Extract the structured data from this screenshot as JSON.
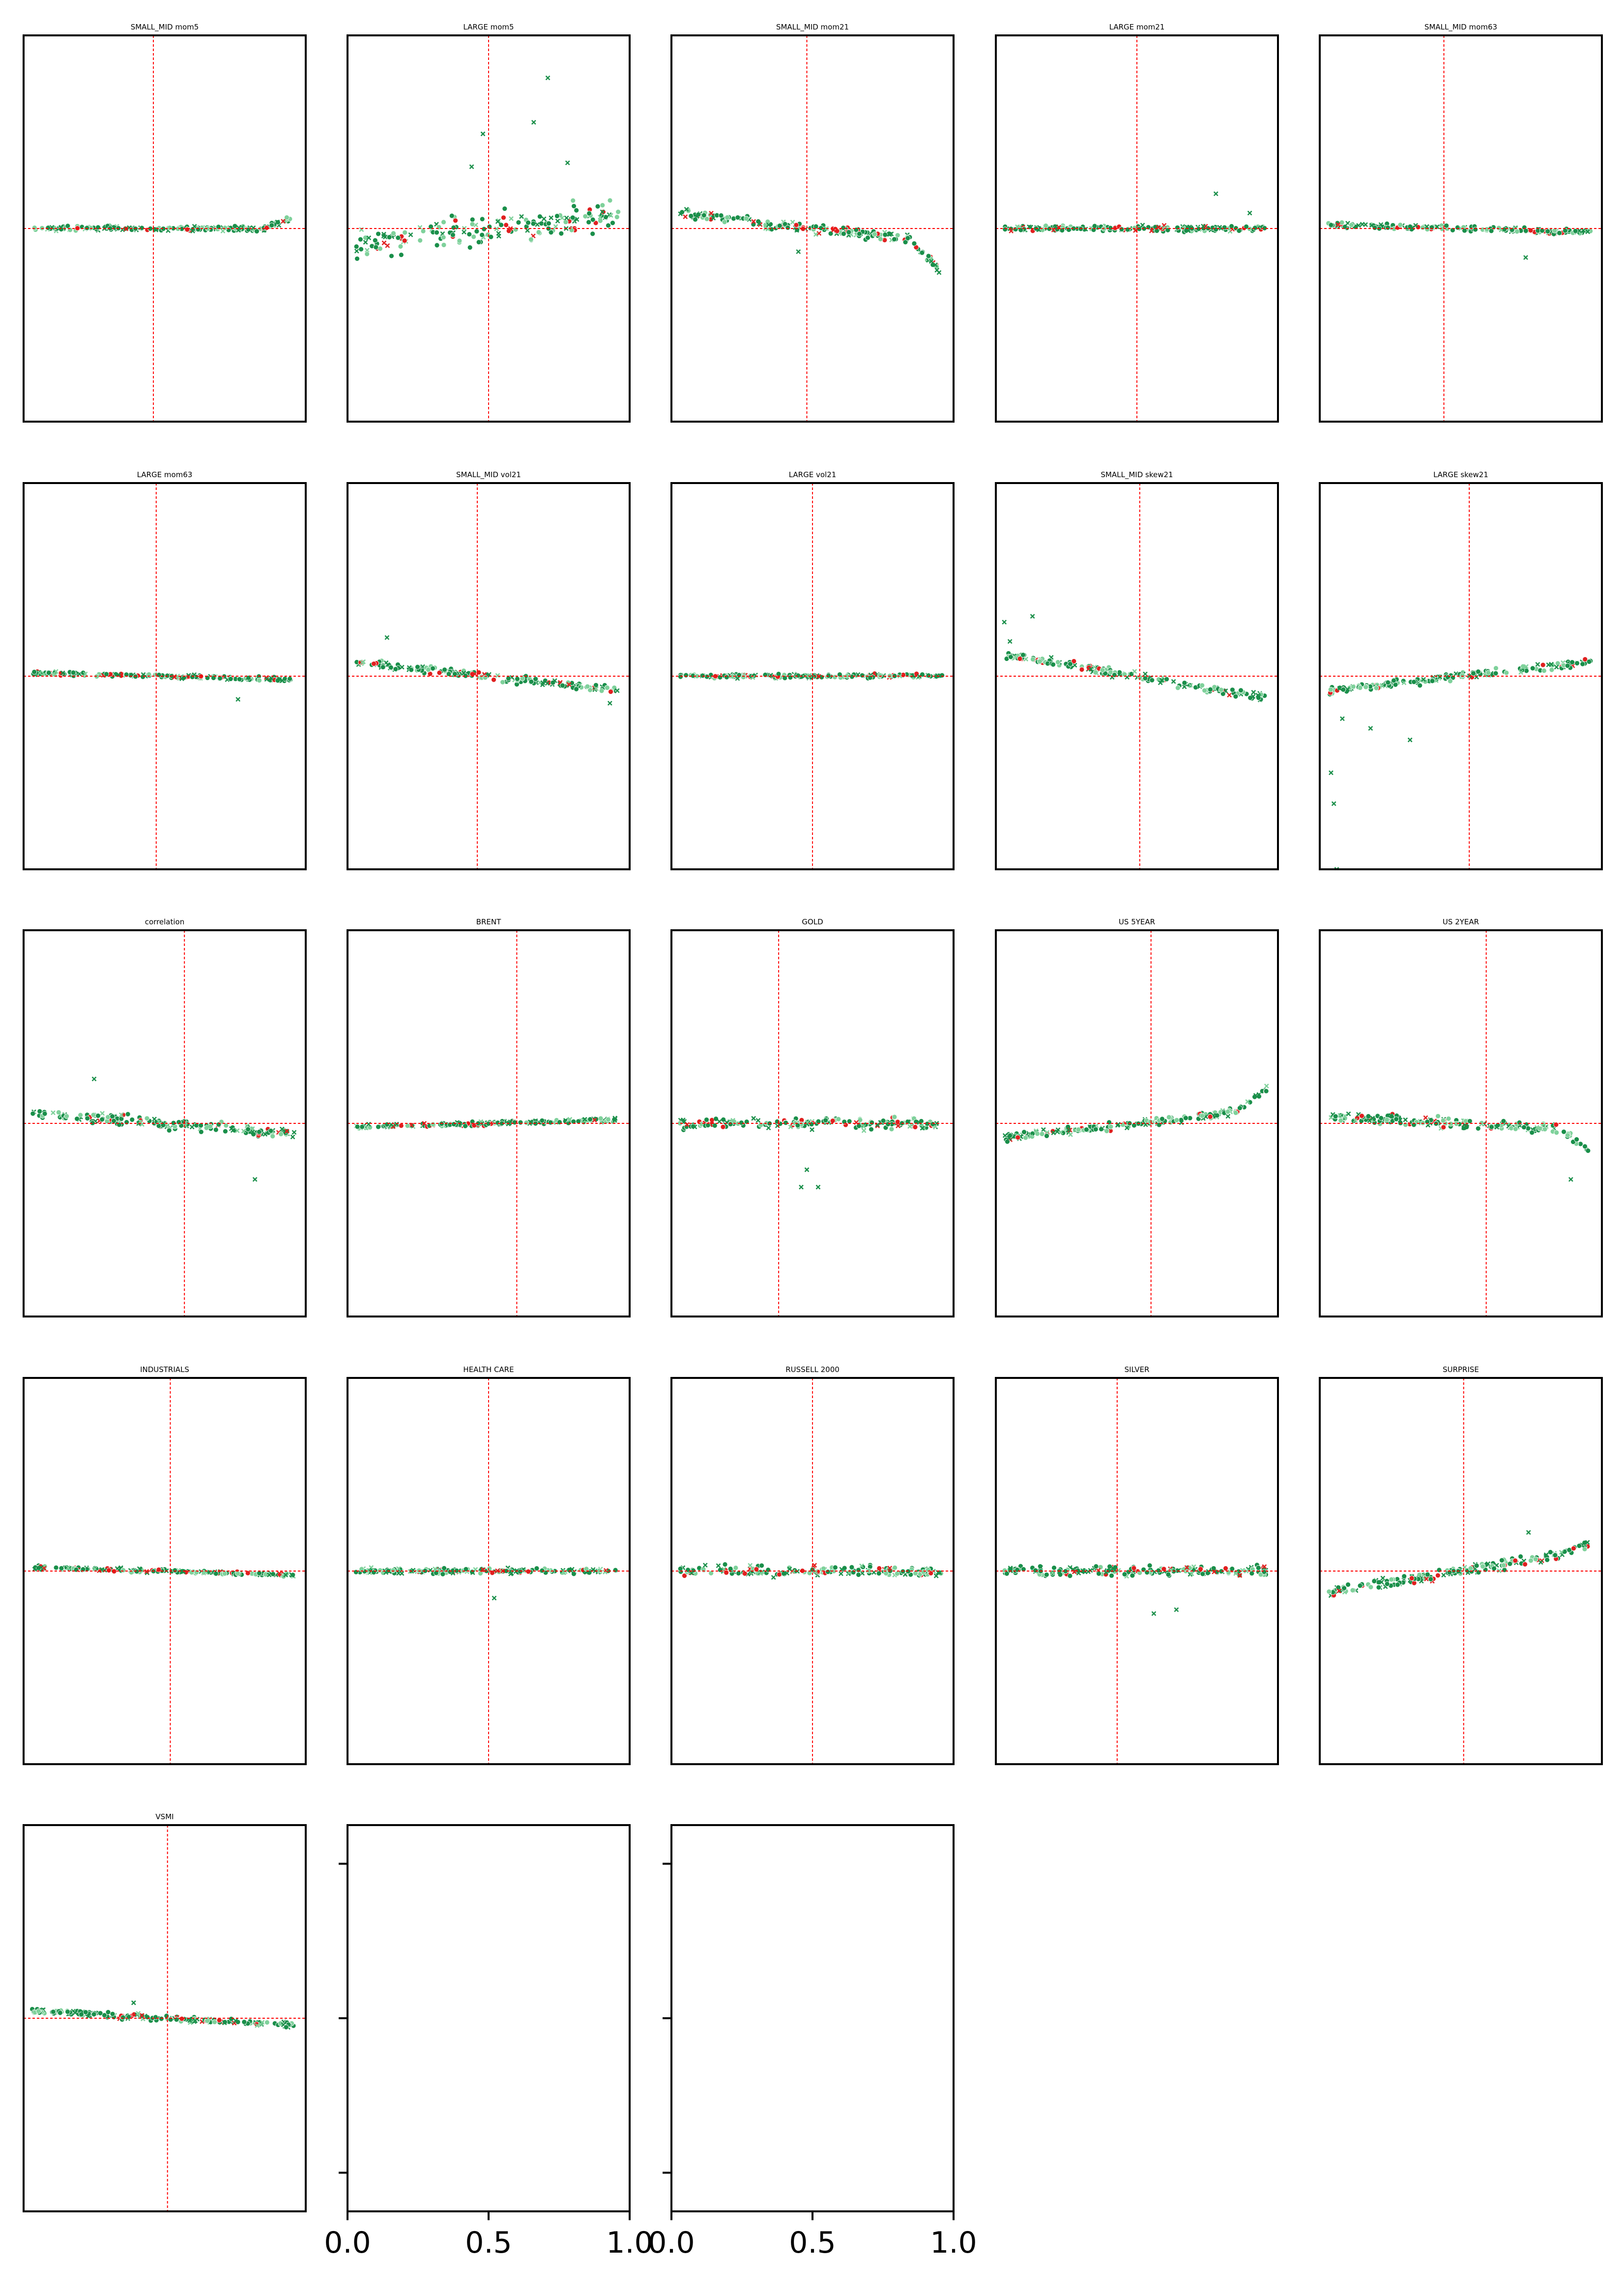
{
  "chart_data": {
    "type": "scatter",
    "layout": {
      "rows": 5,
      "cols": 5
    },
    "colors": {
      "frame": "#000000",
      "reference_line": "#ff0000",
      "point_primary": "#1a8f4a",
      "point_light": "#7fd19b",
      "point_red": "#e02020"
    },
    "panels": [
      {
        "title": "SMALL_MID mom5",
        "ref_x": 0.46,
        "ref_y": 0.0,
        "ylim": [
          -1,
          1
        ],
        "spread": 0.02,
        "trend": 0.0,
        "tail": 0.08,
        "outliers": []
      },
      {
        "title": "LARGE mom5",
        "ref_x": 0.5,
        "ref_y": 0.0,
        "ylim": [
          -1,
          1
        ],
        "spread": 0.12,
        "trend": 0.08,
        "tail": 0.0,
        "outliers": [
          [
            0.71,
            0.78
          ],
          [
            0.66,
            0.55
          ],
          [
            0.48,
            0.49
          ],
          [
            0.44,
            0.32
          ],
          [
            0.78,
            0.34
          ]
        ]
      },
      {
        "title": "SMALL_MID mom21",
        "ref_x": 0.48,
        "ref_y": 0.0,
        "ylim": [
          -1,
          1
        ],
        "spread": 0.04,
        "trend": -0.08,
        "tail": -0.22,
        "outliers": [
          [
            0.45,
            -0.12
          ]
        ]
      },
      {
        "title": "LARGE mom21",
        "ref_x": 0.5,
        "ref_y": 0.0,
        "ylim": [
          -1,
          1
        ],
        "spread": 0.02,
        "trend": 0.0,
        "tail": 0.0,
        "outliers": [
          [
            0.78,
            0.18
          ],
          [
            0.9,
            0.08
          ]
        ]
      },
      {
        "title": "SMALL_MID mom63",
        "ref_x": 0.44,
        "ref_y": 0.0,
        "ylim": [
          -1,
          1
        ],
        "spread": 0.02,
        "trend": -0.02,
        "tail": 0.0,
        "outliers": [
          [
            0.73,
            -0.15
          ]
        ]
      },
      {
        "title": "LARGE mom63",
        "ref_x": 0.47,
        "ref_y": 0.0,
        "ylim": [
          -1,
          1
        ],
        "spread": 0.015,
        "trend": -0.02,
        "tail": 0.0,
        "outliers": [
          [
            0.76,
            -0.12
          ]
        ]
      },
      {
        "title": "SMALL_MID vol21",
        "ref_x": 0.46,
        "ref_y": 0.0,
        "ylim": [
          -1,
          1
        ],
        "spread": 0.03,
        "trend": -0.08,
        "tail": 0.0,
        "outliers": [
          [
            0.14,
            0.2
          ],
          [
            0.93,
            -0.14
          ]
        ]
      },
      {
        "title": "LARGE vol21",
        "ref_x": 0.5,
        "ref_y": 0.0,
        "ylim": [
          -1,
          1
        ],
        "spread": 0.015,
        "trend": 0.0,
        "tail": 0.0,
        "outliers": []
      },
      {
        "title": "SMALL_MID skew21",
        "ref_x": 0.51,
        "ref_y": 0.0,
        "ylim": [
          -1,
          1
        ],
        "spread": 0.03,
        "trend": -0.12,
        "tail": 0.0,
        "outliers": [
          [
            0.03,
            0.28
          ],
          [
            0.13,
            0.31
          ],
          [
            0.05,
            0.18
          ]
        ]
      },
      {
        "title": "LARGE skew21",
        "ref_x": 0.53,
        "ref_y": 0.0,
        "ylim": [
          -1,
          1
        ],
        "spread": 0.03,
        "trend": 0.08,
        "tail": 0.0,
        "outliers": [
          [
            0.04,
            -0.5
          ],
          [
            0.05,
            -0.66
          ],
          [
            0.06,
            -1.0
          ],
          [
            0.08,
            -0.22
          ],
          [
            0.32,
            -0.33
          ],
          [
            0.18,
            -0.27
          ]
        ]
      },
      {
        "title": "correlation",
        "ref_x": 0.57,
        "ref_y": 0.0,
        "ylim": [
          -1,
          1
        ],
        "spread": 0.04,
        "trend": -0.06,
        "tail": 0.0,
        "outliers": [
          [
            0.25,
            0.23
          ],
          [
            0.82,
            -0.29
          ]
        ]
      },
      {
        "title": "BRENT",
        "ref_x": 0.6,
        "ref_y": 0.0,
        "ylim": [
          -1,
          1
        ],
        "spread": 0.015,
        "trend": 0.02,
        "tail": 0.0,
        "outliers": []
      },
      {
        "title": "GOLD",
        "ref_x": 0.38,
        "ref_y": 0.0,
        "ylim": [
          -1,
          1
        ],
        "spread": 0.04,
        "trend": 0.0,
        "tail": 0.0,
        "outliers": [
          [
            0.46,
            -0.33
          ],
          [
            0.52,
            -0.33
          ],
          [
            0.48,
            -0.24
          ]
        ]
      },
      {
        "title": "US 5YEAR",
        "ref_x": 0.55,
        "ref_y": 0.0,
        "ylim": [
          -1,
          1
        ],
        "spread": 0.03,
        "trend": 0.08,
        "tail": 0.14,
        "outliers": []
      },
      {
        "title": "US 2YEAR",
        "ref_x": 0.59,
        "ref_y": 0.0,
        "ylim": [
          -1,
          1
        ],
        "spread": 0.04,
        "trend": -0.04,
        "tail": -0.14,
        "outliers": [
          [
            0.89,
            -0.29
          ]
        ]
      },
      {
        "title": "INDUSTRIALS",
        "ref_x": 0.52,
        "ref_y": 0.0,
        "ylim": [
          -1,
          1
        ],
        "spread": 0.015,
        "trend": -0.02,
        "tail": 0.0,
        "outliers": []
      },
      {
        "title": "HEALTH CARE",
        "ref_x": 0.5,
        "ref_y": 0.0,
        "ylim": [
          -1,
          1
        ],
        "spread": 0.02,
        "trend": 0.0,
        "tail": 0.0,
        "outliers": [
          [
            0.52,
            -0.14
          ]
        ]
      },
      {
        "title": "RUSSELL 2000",
        "ref_x": 0.5,
        "ref_y": 0.0,
        "ylim": [
          -1,
          1
        ],
        "spread": 0.04,
        "trend": 0.0,
        "tail": 0.0,
        "outliers": []
      },
      {
        "title": "SILVER",
        "ref_x": 0.43,
        "ref_y": 0.0,
        "ylim": [
          -1,
          1
        ],
        "spread": 0.04,
        "trend": 0.0,
        "tail": 0.0,
        "outliers": [
          [
            0.56,
            -0.22
          ],
          [
            0.64,
            -0.2
          ]
        ]
      },
      {
        "title": "SURPRISE",
        "ref_x": 0.51,
        "ref_y": 0.0,
        "ylim": [
          -1,
          1
        ],
        "spread": 0.04,
        "trend": 0.12,
        "tail": 0.05,
        "outliers": [
          [
            0.74,
            0.2
          ]
        ]
      },
      {
        "title": "VSMI",
        "ref_x": 0.51,
        "ref_y": 0.0,
        "ylim": [
          -1,
          1
        ],
        "spread": 0.02,
        "trend": -0.04,
        "tail": 0.0,
        "outliers": [
          [
            0.39,
            0.08
          ]
        ]
      }
    ],
    "empty_panels": [
      {
        "xlim": [
          0.0,
          1.0
        ],
        "xtick_labels": [
          "0.0",
          "0.5",
          "1.0"
        ]
      },
      {
        "xlim": [
          0.0,
          1.0
        ],
        "xtick_labels": [
          "0.0",
          "0.5",
          "1.0"
        ]
      }
    ]
  }
}
